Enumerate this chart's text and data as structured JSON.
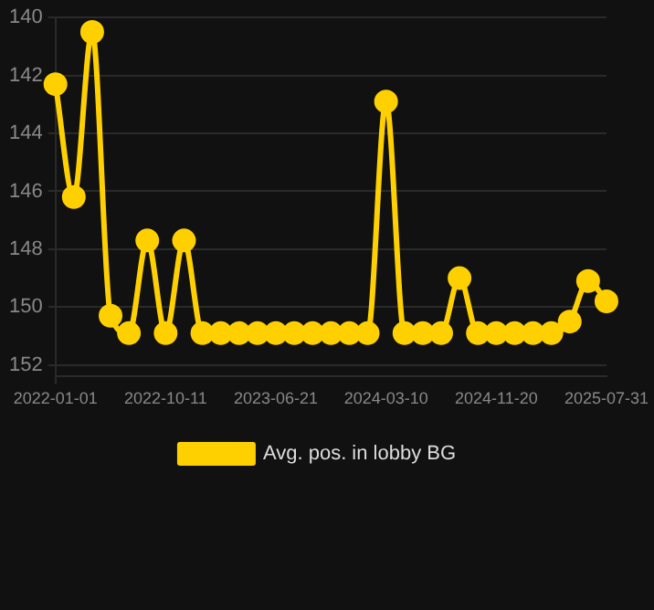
{
  "chart_data": {
    "type": "line",
    "categories": [
      "2022-01-01",
      null,
      null,
      null,
      null,
      null,
      "2022-10-11",
      null,
      null,
      null,
      null,
      null,
      "2023-06-21",
      null,
      null,
      null,
      null,
      null,
      "2024-03-10",
      null,
      null,
      null,
      null,
      null,
      "2024-11-20",
      null,
      null,
      null,
      null,
      null,
      "2025-07-31"
    ],
    "series": [
      {
        "name": "Avg. pos. in lobby BG",
        "color": "#ffd000",
        "values": [
          142.3,
          146.2,
          140.5,
          150.3,
          150.9,
          147.7,
          150.9,
          147.7,
          150.9,
          150.9,
          150.9,
          150.9,
          150.9,
          150.9,
          150.9,
          150.9,
          150.9,
          150.9,
          142.9,
          150.9,
          150.9,
          150.9,
          149.0,
          150.9,
          150.9,
          150.9,
          150.9,
          150.9,
          150.5,
          149.1,
          149.8
        ]
      }
    ],
    "ylim": [
      152.4,
      140
    ],
    "yticks": [
      140,
      142,
      144,
      146,
      148,
      150,
      152
    ],
    "grid": true,
    "legend": "bottom",
    "marker": "circle"
  }
}
